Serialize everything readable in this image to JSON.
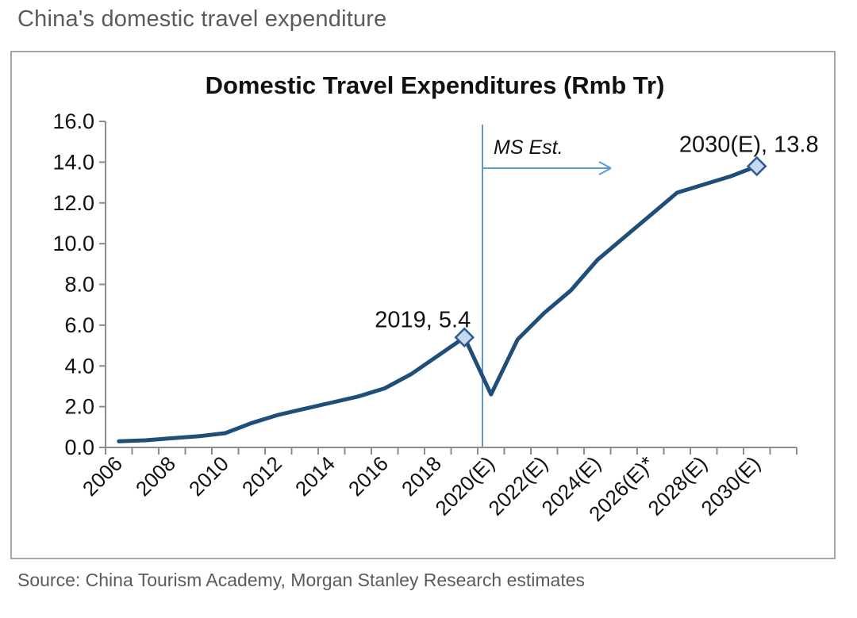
{
  "page": {
    "title": "China's domestic travel expenditure",
    "source": "Source: China Tourism Academy, Morgan Stanley Research estimates"
  },
  "chart": {
    "title": "Domestic Travel Expenditures (Rmb Tr)",
    "ms_est_label": "MS Est.",
    "label_2019": "2019, 5.4",
    "label_2030": "2030(E), 13.8",
    "colors": {
      "line": "#1f4e79",
      "marker_fill": "#c5d9f1",
      "marker_stroke": "#2e5b8f",
      "annotation_blue": "#6fa",
      "estimate_line": "#5b9bd5",
      "axis_gray": "#8c8c8c",
      "text_black": "#111111",
      "muted_gray": "#595b5e"
    }
  },
  "chart_data": {
    "type": "line",
    "title": "Domestic Travel Expenditures (Rmb Tr)",
    "categories": [
      "2006",
      "2007",
      "2008",
      "2009",
      "2010",
      "2011",
      "2012",
      "2013",
      "2014",
      "2015",
      "2016",
      "2017",
      "2018",
      "2019",
      "2020(E)",
      "2021(E)",
      "2022(E)",
      "2023(E)",
      "2024(E)",
      "2025(E)",
      "2026(E)*",
      "2027(E)",
      "2028(E)",
      "2029(E)",
      "2030(E)"
    ],
    "values": [
      0.3,
      0.35,
      0.45,
      0.55,
      0.7,
      1.2,
      1.6,
      1.9,
      2.2,
      2.5,
      2.9,
      3.6,
      4.5,
      5.4,
      2.6,
      5.3,
      6.6,
      7.7,
      9.2,
      10.3,
      11.4,
      12.5,
      12.9,
      13.3,
      13.8
    ],
    "xlabel": "",
    "ylabel": "",
    "ylim": [
      0,
      16
    ],
    "ytick_step": 2,
    "ytick_labels": [
      "0.0",
      "2.0",
      "4.0",
      "6.0",
      "8.0",
      "10.0",
      "12.0",
      "14.0",
      "16.0"
    ],
    "xtick_label_every": 2,
    "grid": false,
    "legend": "none",
    "marker_indices": [
      13,
      24
    ],
    "annotations": [
      {
        "type": "vline",
        "position": "between 2019 and 2020(E)",
        "label": "MS Est.",
        "arrow": "right"
      },
      {
        "type": "point_label",
        "category": "2019",
        "value": 5.4,
        "text": "2019, 5.4"
      },
      {
        "type": "point_label",
        "category": "2030(E)",
        "value": 13.8,
        "text": "2030(E), 13.8"
      }
    ]
  }
}
